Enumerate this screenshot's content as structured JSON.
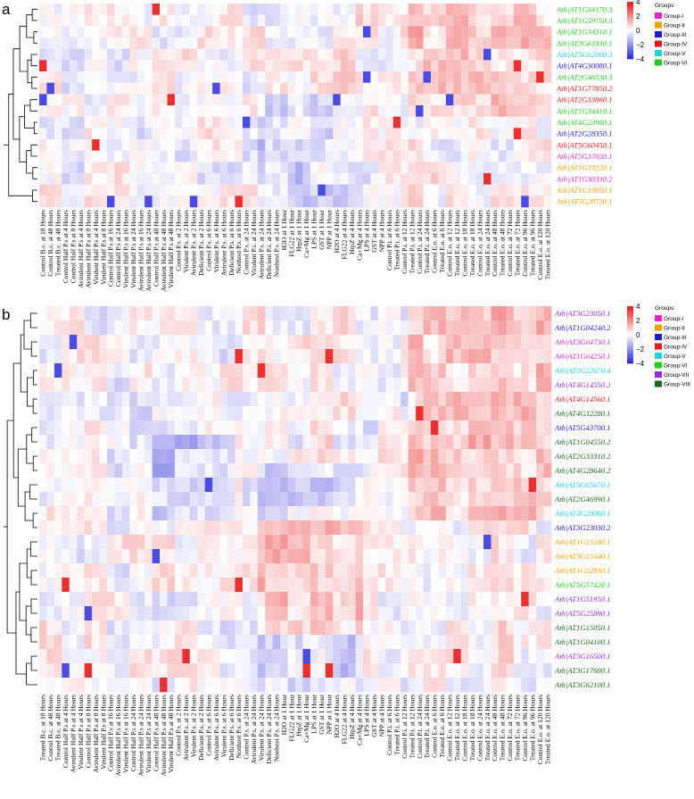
{
  "chart_data": [
    {
      "panel": "a",
      "type": "heatmap",
      "color_scale": {
        "min": -4,
        "max": 4,
        "ticks": [
          4,
          2,
          0,
          -2,
          -4
        ],
        "low_color": "#2b2bd9",
        "mid_color": "#ffffff",
        "high_color": "#e81a1a"
      },
      "columns": [
        "Control B.c. at 18 Hours",
        "Control B.c. at 48 Hours",
        "Treated B.c. at 48 Hours",
        "Control Half P.s at 4 Hours",
        "Control Half P.s at 8 Hours",
        "Avirulent Half P.s at 4 Hours",
        "Avirulent Half P.s at 8 Hours",
        "Virulent Half P.s at 4 Hours",
        "Virulent Half P.s at 8 Hours",
        "Control Half P.s at 16 Hours",
        "Control Half P.s at 24 Hours",
        "Virulent Half P.s at 16 Hours",
        "Virulent Half P.s at 24 Hours",
        "Avirulent Half P.s at 16 Hours",
        "Avirulent Half P.s at 24 Hours",
        "Control Half P.s at 48 Hours",
        "Avirulent Half P.s at 48 Hours",
        "Virulent Half P.s at 48 Hours",
        "Control P.s. at 2 Hours",
        "Virulent P.s. at 2 Hours",
        "Avirulent P.s. at 2 Hours",
        "Deficient P.s. at 2 Hours",
        "Control P.s. at 6 Hours",
        "Virulent P.s. at 6 Hours",
        "Avirulent P.s. at 6 Hours",
        "Deficient P.s. at 6 Hours",
        "Nonhost P.s. at 6 Hours",
        "Control P.s. at 24 Hours",
        "Virulent P.s. at 24 Hours",
        "Avirulent P.s. at 24 Hours",
        "Deficient P.s. at 24 Hours",
        "Nonhost P.s. at 24 Hours",
        "H2O at 1 Hour",
        "FLG22 at 1 Hour",
        "HrpZ at 1 Hour",
        "Ca+Mg at 1 Hour",
        "LPS at 1 Hour",
        "GST at 1 Hour",
        "NPP at 1 Hour",
        "H2O at 4 Hours",
        "FLG22 at 4 Hours",
        "HrpZ at 4 Hours",
        "Ca+Mg at 4 Hours",
        "LPS at 4 Hours",
        "GST at 4 Hours",
        "NPP at 4 Hours",
        "Control P.i. at 6 Hours",
        "Treated P.i. at 6 Hours",
        "Control P.i. at 12 Hours",
        "Treated P.i. at 12 Hours",
        "Control P.i. at 24 Hours",
        "Treated P.i. at 24 Hours",
        "Control E.o. at 6 Hours",
        "Treated E.o. at 6 Hours",
        "Control E.o. at 12 Hours",
        "Treated E.o. at 12 Hours",
        "Control E.o. at 18 Hours",
        "Treated E.o. at 18 Hours",
        "Control E.o. at 24 Hours",
        "Treated E.o. at 24 Hours",
        "Control E.o. at 48 Hours",
        "Treated E.o. at 48 Hours",
        "Control E.o. at 72 Hours",
        "Treated E.o. at 72 Hours",
        "Control E.o. at 96 Hours",
        "Treated E.o. at 96 Hours",
        "Control E.o. at 120 Hours",
        "Treated E.o. at 120 Hours"
      ],
      "rows": [
        {
          "prefix": "Ath",
          "id": "AT1G34170.3",
          "group": "Group-VI"
        },
        {
          "prefix": "Ath",
          "id": "AT1G59750.3",
          "group": "Group-VI"
        },
        {
          "prefix": "Ath",
          "id": "AT1G34310.1",
          "group": "Group-VI"
        },
        {
          "prefix": "Ath",
          "id": "AT3G61830.1",
          "group": "Group-VI"
        },
        {
          "prefix": "Ath",
          "id": "AT5G62000.3",
          "group": "Group-V"
        },
        {
          "prefix": "Ath",
          "id": "AT4G30080.1",
          "group": "Group-III"
        },
        {
          "prefix": "Ath",
          "id": "AT2G46530.3",
          "group": "Group-VI"
        },
        {
          "prefix": "Ath",
          "id": "AT1G77850.2",
          "group": "Group-IV"
        },
        {
          "prefix": "Ath",
          "id": "AT2G33860.1",
          "group": "Group-IV"
        },
        {
          "prefix": "Ath",
          "id": "AT1G34410.1",
          "group": "Group-VI"
        },
        {
          "prefix": "Ath",
          "id": "AT4G23980.1",
          "group": "Group-VI"
        },
        {
          "prefix": "Ath",
          "id": "AT2G28350.1",
          "group": "Group-III"
        },
        {
          "prefix": "Ath",
          "id": "AT5G60450.1",
          "group": "Group-IV"
        },
        {
          "prefix": "Ath",
          "id": "AT5G37020.1",
          "group": "Group-I"
        },
        {
          "prefix": "Ath",
          "id": "AT1G19220.1",
          "group": "Group-II"
        },
        {
          "prefix": "Ath",
          "id": "AT1G30330.2",
          "group": "Group-I"
        },
        {
          "prefix": "Ath",
          "id": "AT1G19850.1",
          "group": "Group-II"
        },
        {
          "prefix": "Ath",
          "id": "AT5G20730.1",
          "group": "Group-II"
        }
      ],
      "legend": {
        "title": "Groups",
        "items": [
          {
            "label": "Group-I",
            "color": "#e024d0"
          },
          {
            "label": "Group-II",
            "color": "#f0a000"
          },
          {
            "label": "Group-III",
            "color": "#1a1ad0"
          },
          {
            "label": "Group-IV",
            "color": "#e01a1a"
          },
          {
            "label": "Group-V",
            "color": "#22d0e0"
          },
          {
            "label": "Group-VI",
            "color": "#22cc22"
          }
        ]
      }
    },
    {
      "panel": "b",
      "type": "heatmap",
      "color_scale": {
        "min": -4,
        "max": 4,
        "ticks": [
          4,
          2,
          0,
          -2,
          -4
        ],
        "low_color": "#2b2bd9",
        "mid_color": "#ffffff",
        "high_color": "#e81a1a"
      },
      "columns": [
        "Treated B.c. at 18 Hours",
        "Control B.c. at 48 Hours",
        "Treated B.c. at 48 Hours",
        "Control Half P.s at 4 Hours",
        "Avirulent Half P.s at 4 Hours",
        "Virulent Half P.s at 4 Hours",
        "Control Half P.s at 8 Hours",
        "Avirulent Half P.s at 8 Hours",
        "Virulent Half P.s at 8 Hours",
        "Control Half P.s at 16 Hours",
        "Avirulent Half P.s at 16 Hours",
        "Virulent Half P.s at 16 Hours",
        "Control Half P.s at 24 Hours",
        "Avirulent Half P.s at 24 Hours",
        "Virulent Half P.s at 24 Hours",
        "Control Half P.s at 48 Hours",
        "Avirulent Half P.s at 48 Hours",
        "Virulent Half P.s at 48 Hours",
        "Control P.s. at 2 Hours",
        "Avirulent P.s. at 2 Hours",
        "Virulent P.s. at 2 Hours",
        "Deficient P.s. at 2 Hours",
        "Control P.s. at 6 Hours",
        "Avirulent P.s. at 6 Hours",
        "Virulent P.s. at 6 Hours",
        "Deficient P.s. at 6 Hours",
        "Nonhost P.s. at 6 Hours",
        "Control P.s. at 24 Hours",
        "Avirulent P.s. at 24 Hours",
        "Virulent P.s. at 24 Hours",
        "Deficient P.s. at 24 Hours",
        "Nonhost P.s. at 24 Hours",
        "H2O at 1 Hour",
        "FLG22 at 1 Hour",
        "HrpZ at 1 Hour",
        "Ca+Mg at 1 Hour",
        "LPS at 1 Hour",
        "GST at 1 Hour",
        "NPP at 1 Hour",
        "H2O at 4 Hours",
        "FLG22 at 4 Hours",
        "HrpZ at 4 Hours",
        "Ca+Mg at 4 Hours",
        "LPS at 4 Hours",
        "GST at 4 Hours",
        "NPP at 4 Hours",
        "Control P.i. at 6 Hours",
        "Treated P.i. at 6 Hours",
        "Control P.i. at 12 Hours",
        "Treated P.i. at 12 Hours",
        "Control P.i. at 24 Hours",
        "Treated P.i. at 24 Hours",
        "Control E.o. at 6 Hours",
        "Treated E.o. at 6 Hours",
        "Control E.o. at 12 Hours",
        "Treated E.o. at 12 Hours",
        "Control E.o. at 18 Hours",
        "Treated E.o. at 18 Hours",
        "Control E.o. at 24 Hours",
        "Treated E.o. at 24 Hours",
        "Control E.o. at 48 Hours",
        "Treated E.o. at 48 Hours",
        "Control E.o. at 72 Hours",
        "Treated E.o. at 72 Hours",
        "Control E.o. at 96 Hours",
        "Treated E.o. at 96 Hours",
        "Control E.o. at 120 Hours",
        "Treated E.o. at 120 Hours"
      ],
      "rows": [
        {
          "prefix": "Ath",
          "id": "AT3G23050.1",
          "group": "Group-VII"
        },
        {
          "prefix": "Ath",
          "id": "AT1G04240.2",
          "group": "Group-III"
        },
        {
          "prefix": "Ath",
          "id": "AT3G04730.1",
          "group": "Group-I"
        },
        {
          "prefix": "Ath",
          "id": "AT1G04250.1",
          "group": "Group-I"
        },
        {
          "prefix": "Ath",
          "id": "AT2G22670.4",
          "group": "Group-V"
        },
        {
          "prefix": "Ath",
          "id": "AT4G14550.2",
          "group": "Group-VII"
        },
        {
          "prefix": "Ath",
          "id": "AT4G14560.1",
          "group": "Group-IV"
        },
        {
          "prefix": "Ath",
          "id": "AT4G32280.1",
          "group": "Group-VIII"
        },
        {
          "prefix": "Ath",
          "id": "AT5G43700.1",
          "group": "Group-III"
        },
        {
          "prefix": "Ath",
          "id": "AT1G04550.2",
          "group": "Group-VIII"
        },
        {
          "prefix": "Ath",
          "id": "AT2G33310.2",
          "group": "Group-VIII"
        },
        {
          "prefix": "Ath",
          "id": "AT4G28640.2",
          "group": "Group-VIII"
        },
        {
          "prefix": "Ath",
          "id": "AT5G65670.1",
          "group": "Group-V"
        },
        {
          "prefix": "Ath",
          "id": "AT2G46990.1",
          "group": "Group-VIII"
        },
        {
          "prefix": "Ath",
          "id": "AT4G29080.1",
          "group": "Group-V"
        },
        {
          "prefix": "Ath",
          "id": "AT3G23030.2",
          "group": "Group-III"
        },
        {
          "prefix": "Ath",
          "id": "AT1G15580.1",
          "group": "Group-II"
        },
        {
          "prefix": "Ath",
          "id": "AT3G15540.1",
          "group": "Group-II"
        },
        {
          "prefix": "Ath",
          "id": "AT1G52830.1",
          "group": "Group-II"
        },
        {
          "prefix": "Ath",
          "id": "AT5G57420.1",
          "group": "Group-VI"
        },
        {
          "prefix": "Ath",
          "id": "AT1G51950.1",
          "group": "Group-VII"
        },
        {
          "prefix": "Ath",
          "id": "AT5G25890.1",
          "group": "Group-VII"
        },
        {
          "prefix": "Ath",
          "id": "AT1G15050.1",
          "group": "Group-VIII"
        },
        {
          "prefix": "Ath",
          "id": "AT1G04100.1",
          "group": "Group-VIII"
        },
        {
          "prefix": "Ath",
          "id": "AT3G16500.1",
          "group": "Group-VII"
        },
        {
          "prefix": "Ath",
          "id": "AT3G17600.1",
          "group": "Group-VIII"
        },
        {
          "prefix": "Ath",
          "id": "AT3G62100.1",
          "group": "Group-VIII"
        }
      ],
      "legend": {
        "title": "Groups",
        "items": [
          {
            "label": "Group-I",
            "color": "#e024d0"
          },
          {
            "label": "Group-II",
            "color": "#f0a000"
          },
          {
            "label": "Group-III",
            "color": "#1a1ad0"
          },
          {
            "label": "Group-IV",
            "color": "#e01a1a"
          },
          {
            "label": "Group-V",
            "color": "#22d0e0"
          },
          {
            "label": "Group-VI",
            "color": "#22cc22"
          },
          {
            "label": "Group-VII",
            "color": "#9a2ad8"
          },
          {
            "label": "Group-VIII",
            "color": "#1a6a1a"
          }
        ]
      }
    }
  ]
}
